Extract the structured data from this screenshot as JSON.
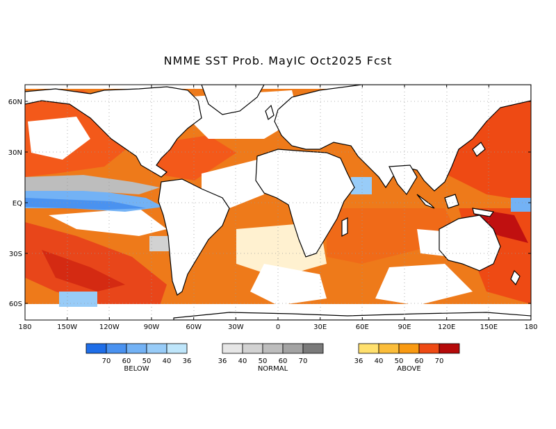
{
  "title": "NMME SST Prob. MayIC  Oct2025 Fcst",
  "map": {
    "lon_labels": [
      "180",
      "150W",
      "120W",
      "90W",
      "60W",
      "30W",
      "0",
      "30E",
      "60E",
      "90E",
      "120E",
      "150E",
      "180"
    ],
    "lat_labels": [
      "60N",
      "30N",
      "EQ",
      "30S",
      "60S"
    ],
    "land_color": "#ffffff",
    "coast_color": "#000000",
    "grid": "dotted"
  },
  "legend": {
    "below": {
      "title": "BELOW",
      "colors": [
        "#1f6ee8",
        "#4a92f0",
        "#73b2f5",
        "#98ccf8",
        "#bfe6fb"
      ],
      "labels": [
        "70",
        "60",
        "50",
        "40",
        "36"
      ]
    },
    "normal": {
      "title": "NORMAL",
      "colors": [
        "#e6e6e6",
        "#d2d2d2",
        "#bdbdbd",
        "#a3a3a3",
        "#7a7a7a"
      ],
      "labels": [
        "36",
        "40",
        "50",
        "60",
        "70"
      ]
    },
    "above": {
      "title": "ABOVE",
      "colors": [
        "#ffe06e",
        "#fbbd3a",
        "#f99a12",
        "#ee4a14",
        "#b50a0a"
      ],
      "labels": [
        "36",
        "40",
        "50",
        "60",
        "70"
      ]
    }
  }
}
